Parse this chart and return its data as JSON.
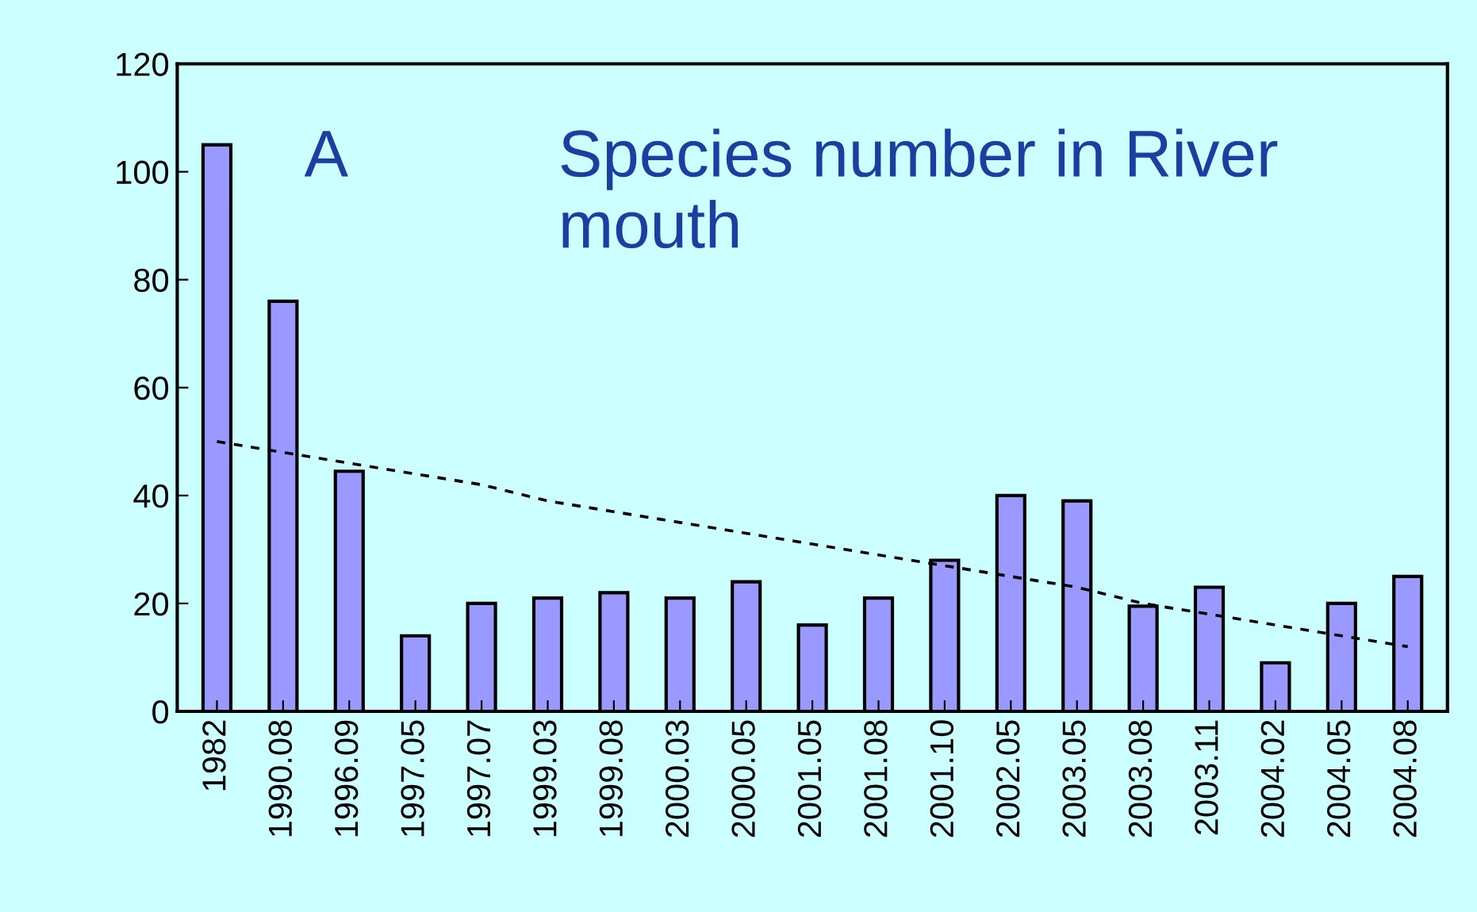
{
  "chart_data": {
    "type": "bar",
    "title": "Species number in River mouth",
    "annotations": [
      "A"
    ],
    "categories": [
      "1982",
      "1990.08",
      "1996.09",
      "1997.05",
      "1997.07",
      "1999.03",
      "1999.08",
      "2000.03",
      "2000.05",
      "2001.05",
      "2001.08",
      "2001.10",
      "2002.05",
      "2003.05",
      "2003.08",
      "2003.11",
      "2004.02",
      "2004.05",
      "2004.08"
    ],
    "series": [
      {
        "color": "#9999ff",
        "values": [
          105,
          76,
          44.5,
          14,
          20,
          21,
          22,
          21,
          24,
          16,
          21,
          28,
          40,
          39,
          19.5,
          23,
          9,
          20,
          25
        ]
      },
      {
        "type": "line",
        "color": "#000000",
        "line_style": "dashed",
        "values": [
          50,
          48,
          46,
          44,
          42,
          39,
          37,
          35,
          33,
          31,
          29,
          27,
          25,
          23,
          20,
          18,
          16,
          14,
          12
        ]
      }
    ],
    "ylim": [
      0,
      120
    ],
    "yticks": [
      0,
      20,
      40,
      60,
      80,
      100,
      120
    ],
    "grid": false,
    "legend": false
  }
}
